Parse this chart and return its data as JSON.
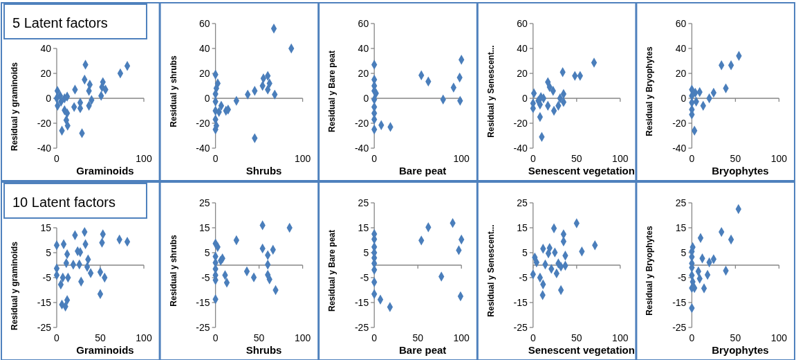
{
  "chart_data": [
    {
      "type": "scatter",
      "title": "5 Latent factors",
      "xlabel": "Graminoids",
      "ylabel": "Residual y graminoids",
      "xlim": [
        0,
        100
      ],
      "xticks": [
        0,
        100
      ],
      "ylim": [
        -40,
        40
      ],
      "yticks": [
        -40,
        -20,
        0,
        20,
        40
      ],
      "marker": "diamond",
      "color": "#4a7ebb",
      "x": [
        0.8,
        0,
        5,
        1,
        4,
        9,
        12,
        9,
        12,
        11,
        12.5,
        6,
        21,
        20,
        27,
        27,
        29,
        33,
        32,
        38,
        37,
        37,
        40,
        52,
        53,
        56,
        51,
        73,
        81
      ],
      "values": [
        6,
        0,
        -2.6,
        -6,
        2,
        0,
        1.4,
        -9.6,
        -12,
        -17.5,
        -22,
        -26,
        7,
        -7,
        -3.5,
        -8,
        -28,
        27,
        15,
        11,
        6,
        -6,
        -1.4,
        9,
        13,
        7,
        2,
        20,
        26
      ]
    },
    {
      "type": "scatter",
      "xlabel": "Shrubs",
      "ylabel": "Residual y shrubs",
      "xlim": [
        0,
        100
      ],
      "xticks": [
        0,
        100
      ],
      "ylim": [
        -40,
        60
      ],
      "yticks": [
        -40,
        -20,
        0,
        20,
        40,
        60
      ],
      "marker": "diamond",
      "color": "#4a7ebb",
      "x": [
        67,
        87,
        0,
        2.6,
        1,
        0,
        0,
        0,
        0,
        1,
        0,
        6.6,
        12,
        14.5,
        24,
        37,
        45,
        54,
        55,
        60,
        62,
        60,
        68,
        45,
        4
      ],
      "values": [
        56,
        40,
        19,
        12,
        8,
        3.5,
        -2.6,
        -10,
        -17,
        -22,
        -25,
        -6,
        -10,
        -9,
        -2,
        3,
        6,
        10,
        16,
        18,
        12,
        7,
        3,
        -32,
        -11
      ]
    },
    {
      "type": "scatter",
      "xlabel": "Bare peat",
      "ylabel": "Residual y Bare peat",
      "xlim": [
        0,
        100
      ],
      "xticks": [
        0,
        100
      ],
      "ylim": [
        -40,
        60
      ],
      "yticks": [
        -40,
        -20,
        0,
        20,
        40,
        60
      ],
      "marker": "diamond",
      "color": "#4a7ebb",
      "x": [
        0,
        0,
        0,
        0,
        2,
        0,
        0,
        0,
        0,
        0,
        8,
        18.5,
        54,
        62,
        79,
        91,
        98,
        100,
        98.5
      ],
      "values": [
        27,
        15,
        10,
        6,
        4,
        -1,
        -7,
        -12,
        -17,
        -25,
        -21.5,
        -23,
        18.5,
        13.5,
        -1,
        8.6,
        16.7,
        31,
        -2
      ]
    },
    {
      "type": "scatter",
      "xlabel": "Senescent vegetation",
      "ylabel": "Residual y Senescent...",
      "xlim": [
        0,
        100
      ],
      "xticks": [
        0,
        50,
        100
      ],
      "ylim": [
        -40,
        60
      ],
      "yticks": [
        -40,
        -20,
        0,
        20,
        40,
        60
      ],
      "marker": "diamond",
      "color": "#4a7ebb",
      "x": [
        70,
        34,
        48,
        54,
        23,
        35,
        31,
        35,
        29,
        24,
        17,
        19,
        1,
        9,
        6,
        12,
        0,
        0,
        8,
        8,
        10,
        17
      ],
      "values": [
        28.6,
        21,
        18,
        18,
        6,
        3.5,
        0,
        -3,
        -6,
        -10,
        13,
        9,
        4,
        1,
        -2,
        0,
        -4,
        -8,
        -5,
        -15,
        -31,
        -6
      ]
    },
    {
      "type": "scatter",
      "xlabel": "Bryophytes",
      "ylabel": "Residual y Bryophytes",
      "xlim": [
        0,
        100
      ],
      "xticks": [
        0,
        50,
        100
      ],
      "ylim": [
        -40,
        60
      ],
      "yticks": [
        -40,
        -20,
        0,
        20,
        40,
        60
      ],
      "marker": "diamond",
      "color": "#4a7ebb",
      "x": [
        54,
        34,
        45,
        39,
        25,
        20,
        13,
        9,
        4,
        0,
        0,
        0,
        0,
        0,
        3,
        5
      ],
      "values": [
        34,
        26.5,
        26.5,
        8,
        4.5,
        0,
        -6,
        5,
        4.5,
        7,
        2,
        -3.5,
        -9,
        -13,
        -26,
        -2.6
      ]
    },
    {
      "type": "scatter",
      "title": "10 Latent factors",
      "xlabel": "Graminoids",
      "ylabel": "Residual y graminoids",
      "xlim": [
        0,
        100
      ],
      "xticks": [
        0,
        50,
        100
      ],
      "ylim": [
        -25,
        15
      ],
      "yticks": [
        -25,
        -15,
        -5,
        5,
        15
      ],
      "marker": "diamond",
      "color": "#4a7ebb",
      "x": [
        0,
        0,
        0,
        4.7,
        7,
        8,
        12,
        11,
        13,
        6,
        10,
        12,
        19,
        21,
        24,
        27,
        26,
        28,
        32,
        33,
        36,
        35,
        39,
        53,
        52,
        50,
        55,
        50,
        72,
        81
      ],
      "values": [
        8,
        -1.3,
        -4,
        -7.8,
        -5,
        8.4,
        4.4,
        0.8,
        -5,
        -15.8,
        -16.6,
        -14,
        0.2,
        12,
        5.6,
        5.2,
        0.3,
        -6.6,
        13.3,
        8.4,
        2.3,
        -0.7,
        -3.2,
        12.4,
        9,
        -2.8,
        -5,
        -11.6,
        10.3,
        9.4
      ]
    },
    {
      "type": "scatter",
      "xlabel": "Shrubs",
      "ylabel": "Residual y shrubs",
      "xlim": [
        0,
        100
      ],
      "xticks": [
        0,
        50,
        100
      ],
      "ylim": [
        -25,
        25
      ],
      "yticks": [
        -25,
        -15,
        -5,
        5,
        15,
        25
      ],
      "marker": "diamond",
      "color": "#4a7ebb",
      "x": [
        54,
        85,
        24,
        0,
        2.5,
        0,
        0,
        0,
        0,
        0,
        0,
        6,
        8,
        11,
        13,
        36,
        44,
        54,
        60,
        66,
        60,
        60,
        62,
        69
      ],
      "values": [
        16,
        15,
        10,
        8.7,
        7.3,
        3.5,
        1,
        -1.5,
        -4,
        -6,
        -13.7,
        1.8,
        2.7,
        -4,
        -7,
        -2.5,
        -4.9,
        6.7,
        4,
        6.2,
        0.2,
        -3.9,
        -5.7,
        -10
      ]
    },
    {
      "type": "scatter",
      "xlabel": "Bare peat",
      "ylabel": "Residual y Bare peat",
      "xlim": [
        0,
        100
      ],
      "xticks": [
        0,
        50,
        100
      ],
      "ylim": [
        -25,
        25
      ],
      "yticks": [
        -25,
        -15,
        -5,
        5,
        15,
        25
      ],
      "marker": "diamond",
      "color": "#4a7ebb",
      "x": [
        0,
        0,
        0,
        0,
        0,
        0,
        0,
        0,
        0,
        7,
        18,
        54,
        62,
        90,
        100,
        97,
        77,
        99
      ],
      "values": [
        12.5,
        10.4,
        7.3,
        5,
        2.9,
        0.7,
        -1.9,
        -6.8,
        -11.6,
        -13.8,
        -16.8,
        9.9,
        15.2,
        16.9,
        10.3,
        6,
        -4.6,
        -12.5
      ]
    },
    {
      "type": "scatter",
      "xlabel": "Senescent vegetation",
      "ylabel": "Residual y Senescent...",
      "xlim": [
        0,
        100
      ],
      "xticks": [
        0,
        50,
        100
      ],
      "ylim": [
        -25,
        25
      ],
      "yticks": [
        -25,
        -15,
        -5,
        5,
        15,
        25
      ],
      "marker": "diamond",
      "color": "#4a7ebb",
      "x": [
        50,
        24,
        35,
        35,
        71,
        56,
        37,
        25,
        19,
        29,
        37,
        32,
        21,
        27,
        32,
        2,
        4,
        11.5,
        14,
        0,
        8,
        11.5,
        11,
        17.6
      ],
      "values": [
        16.8,
        14.8,
        12.4,
        9.5,
        8,
        5.5,
        3.8,
        5.1,
        6.9,
        0.7,
        -0.2,
        -0.6,
        -1.5,
        -3.3,
        -10,
        3.1,
        1.1,
        6.6,
        0.3,
        -3.7,
        -5,
        -7.7,
        -12,
        4.7
      ]
    },
    {
      "type": "scatter",
      "xlabel": "Bryophytes",
      "ylabel": "Residual y Bryophytes",
      "xlim": [
        0,
        100
      ],
      "xticks": [
        0,
        50,
        100
      ],
      "ylim": [
        -25,
        25
      ],
      "yticks": [
        -25,
        -15,
        -5,
        5,
        15,
        25
      ],
      "marker": "diamond",
      "color": "#4a7ebb",
      "x": [
        53.5,
        34,
        45,
        10,
        12,
        25,
        20,
        39,
        18,
        7.5,
        9,
        14,
        1,
        0,
        0,
        0,
        0,
        0,
        1,
        0,
        3,
        0
      ],
      "values": [
        22.5,
        13.3,
        10.3,
        10.9,
        2.7,
        2.4,
        1.1,
        -2.2,
        -3.9,
        -2.5,
        -5.4,
        -9.3,
        7.2,
        5.5,
        3.3,
        0.7,
        -1,
        -4.1,
        -6.7,
        -9.2,
        -9.2,
        -17.2
      ]
    }
  ]
}
